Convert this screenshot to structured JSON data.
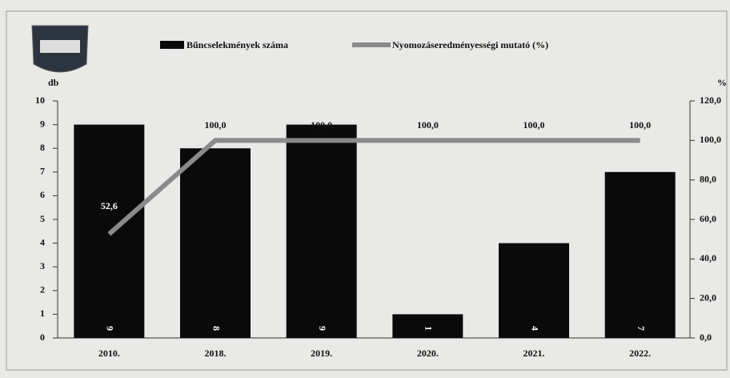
{
  "chart_data": {
    "type": "bar_line",
    "categories": [
      "2010.",
      "2018.",
      "2019.",
      "2020.",
      "2021.",
      "2022."
    ],
    "series": [
      {
        "name": "Bűncselekmények száma",
        "color": "#0a0a0a",
        "type": "bar",
        "values": [
          9,
          8,
          9,
          1,
          4,
          7
        ]
      },
      {
        "name": "Nyomozáseredményességi mutató (%)",
        "color": "#8a8a8a",
        "type": "line",
        "axis": "y2",
        "values": [
          52.6,
          100,
          100,
          100,
          100,
          100
        ],
        "value_labels": [
          "52,6",
          "100,0",
          "100,0",
          "100,0",
          "100,0",
          "100,0"
        ]
      }
    ],
    "ylabel": "db",
    "y2label": "%",
    "ylim": [
      0,
      10
    ],
    "yticks": [
      0,
      1,
      2,
      3,
      4,
      5,
      6,
      7,
      8,
      9,
      10
    ],
    "y2lim": [
      0,
      120
    ],
    "y2ticks": [
      {
        "value": 0,
        "label": "0,0"
      },
      {
        "value": 20,
        "label": "20,0"
      },
      {
        "value": 40,
        "label": "40,0"
      },
      {
        "value": 60,
        "label": "60,0"
      },
      {
        "value": 80,
        "label": "80,0"
      },
      {
        "value": 100,
        "label": "100,0"
      },
      {
        "value": 120,
        "label": "120,0"
      }
    ]
  }
}
